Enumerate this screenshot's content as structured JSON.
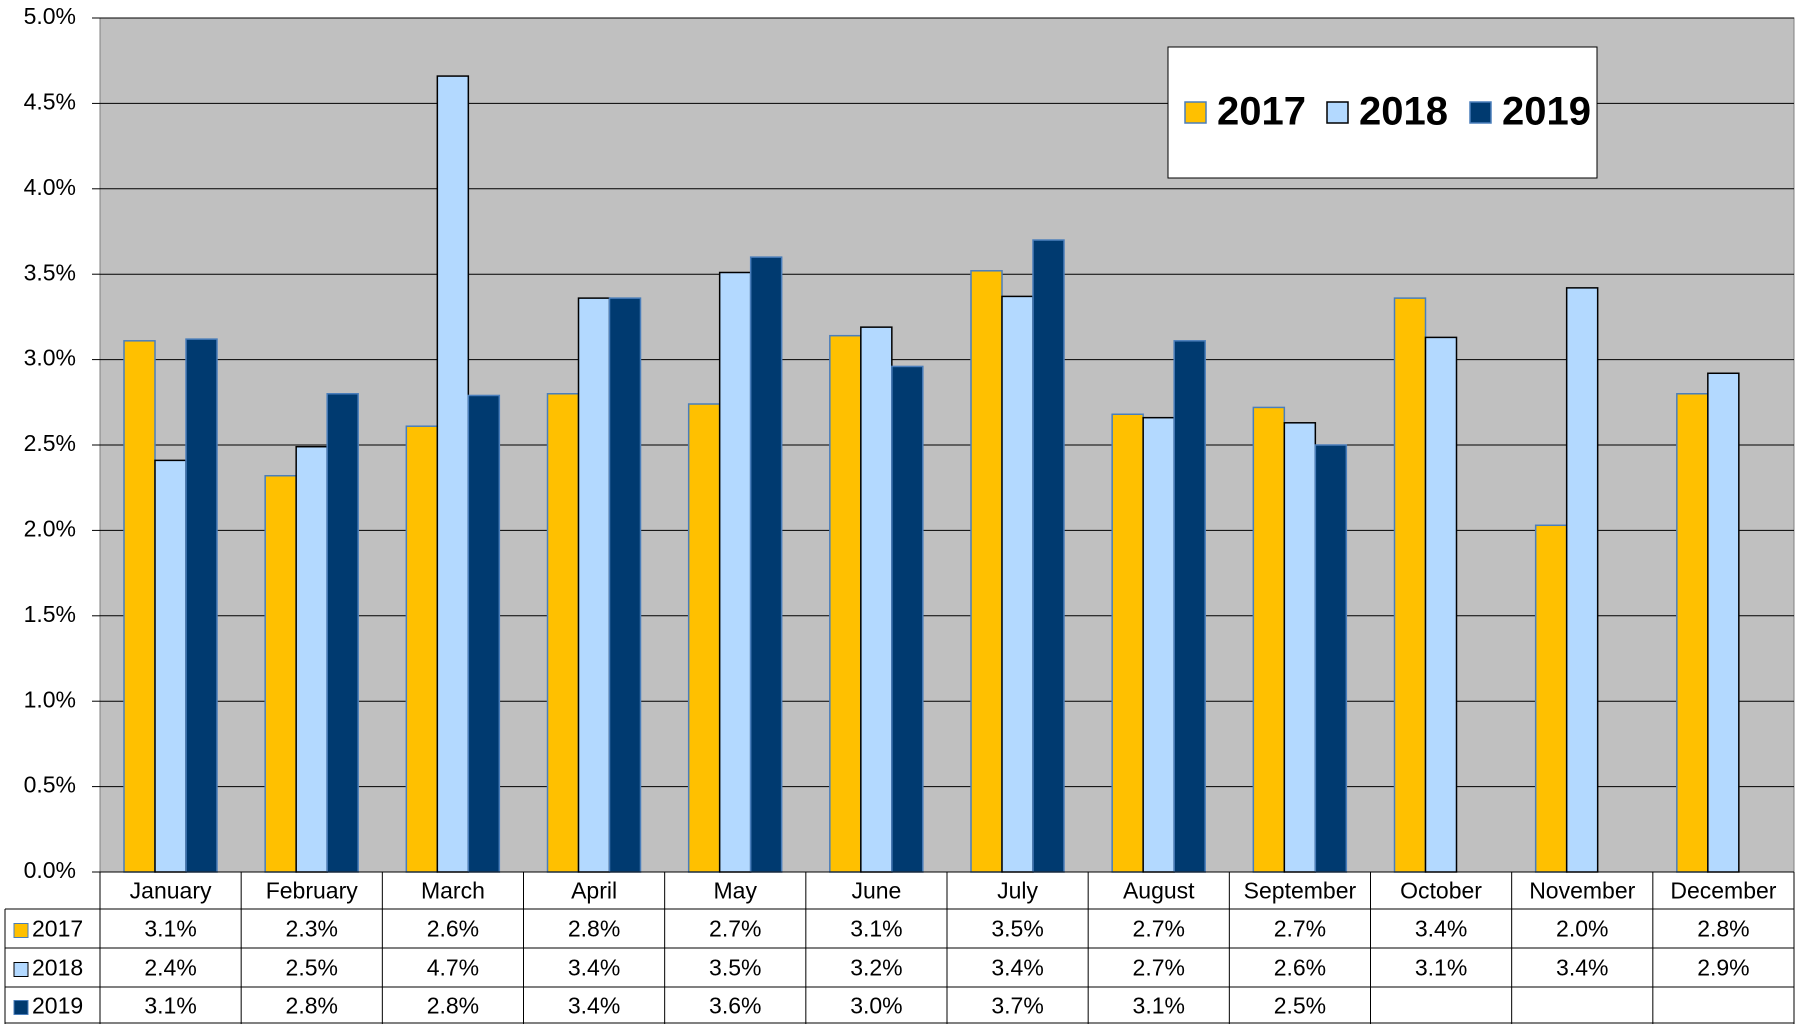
{
  "chart_data": {
    "type": "bar",
    "categories": [
      "January",
      "February",
      "March",
      "April",
      "May",
      "June",
      "July",
      "August",
      "September",
      "October",
      "November",
      "December"
    ],
    "series": [
      {
        "name": "2017",
        "color": "#FFC000",
        "values": [
          3.11,
          2.32,
          2.61,
          2.8,
          2.74,
          3.14,
          3.52,
          2.68,
          2.72,
          3.36,
          2.03,
          2.8
        ],
        "value_labels": [
          "3.1%",
          "2.3%",
          "2.6%",
          "2.8%",
          "2.7%",
          "3.1%",
          "3.5%",
          "2.7%",
          "2.7%",
          "3.4%",
          "2.0%",
          "2.8%"
        ]
      },
      {
        "name": "2018",
        "color": "#B3D9FF",
        "values": [
          2.41,
          2.49,
          4.66,
          3.36,
          3.51,
          3.19,
          3.37,
          2.66,
          2.63,
          3.13,
          3.42,
          2.92
        ],
        "value_labels": [
          "2.4%",
          "2.5%",
          "4.7%",
          "3.4%",
          "3.5%",
          "3.2%",
          "3.4%",
          "2.7%",
          "2.6%",
          "3.1%",
          "3.4%",
          "2.9%"
        ]
      },
      {
        "name": "2019",
        "color": "#003A70",
        "values": [
          3.12,
          2.8,
          2.79,
          3.36,
          3.6,
          2.96,
          3.7,
          3.11,
          2.5,
          null,
          null,
          null
        ],
        "value_labels": [
          "3.1%",
          "2.8%",
          "2.8%",
          "3.4%",
          "3.6%",
          "3.0%",
          "3.7%",
          "3.1%",
          "2.5%",
          null,
          null,
          null
        ]
      }
    ],
    "ylim": [
      0,
      5
    ],
    "yticks": [
      {
        "value": 0,
        "label": "0.0%"
      },
      {
        "value": 0.5,
        "label": "0.5%"
      },
      {
        "value": 1,
        "label": "1.0%"
      },
      {
        "value": 1.5,
        "label": "1.5%"
      },
      {
        "value": 2,
        "label": "2.0%"
      },
      {
        "value": 2.5,
        "label": "2.5%"
      },
      {
        "value": 3,
        "label": "3.0%"
      },
      {
        "value": 3.5,
        "label": "3.5%"
      },
      {
        "value": 4,
        "label": "4.0%"
      },
      {
        "value": 4.5,
        "label": "4.5%"
      },
      {
        "value": 5,
        "label": "5.0%"
      }
    ],
    "grid": true,
    "legend": "upper right"
  }
}
